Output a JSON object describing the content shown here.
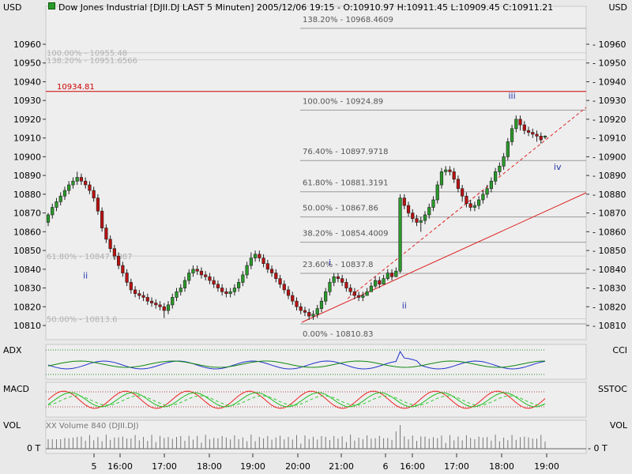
{
  "header": {
    "left_unit": "USD",
    "right_unit": "USD",
    "title": "Dow Jones Industrial [DJII.DJ LAST 5 Minuten] 2005/12/06 19:15 - O:10910.97 H:10911.45 L:10909.45 C:10911.21"
  },
  "panels": {
    "adx_label": "ADX",
    "cci_label": "CCI",
    "macd_label": "MACD",
    "sstoc_label": "SSTOC",
    "vol_label_left": "VOL",
    "vol_label_right": "VOL",
    "vol_zero_left": "0 T",
    "vol_zero_right": "- 0 T",
    "volume_legend": "XX Volume 840 (DJII.DJ)"
  },
  "colors": {
    "up_candle": "#2a9a2a",
    "down_candle": "#bb1111",
    "level_line": "#cc0000",
    "trendline": "#dd2222",
    "fib_line": "#9a9a9a",
    "wave_label": "#2233aa",
    "adx_blue": "#2233cc",
    "adx_green": "#118811",
    "macd_red": "#ee2222",
    "macd_green": "#22bb22"
  },
  "chart_data": {
    "type": "candlestick",
    "y_axis_ticks": [
      10960,
      10950,
      10940,
      10930,
      10920,
      10910,
      10900,
      10890,
      10880,
      10870,
      10860,
      10850,
      10840,
      10830,
      10820,
      10810
    ],
    "x_axis_labels": [
      "5",
      "16:00",
      "17:00",
      "18:00",
      "19:00",
      "20:00",
      "21:00",
      "6",
      "16:00",
      "17:00",
      "18:00",
      "19:00"
    ],
    "ylim": [
      10806,
      10968
    ],
    "horizontal_level": {
      "value": 10934.81,
      "label": "10934.81"
    },
    "fib_left": [
      {
        "text": "100.00% - 10955.48",
        "value": 10955.48
      },
      {
        "text": "138.20% - 10951.6566",
        "value": 10951.6566
      },
      {
        "text": "61.80% - 10847.0087",
        "value": 10847.0087
      },
      {
        "text": "50.00% - 10813.6",
        "value": 10813.6
      }
    ],
    "fib_right": [
      {
        "text": "138.20% - 10968.4609",
        "value": 10968.4609
      },
      {
        "text": "100.00% - 10924.89",
        "value": 10924.89
      },
      {
        "text": "76.40% - 10897.9718",
        "value": 10897.9718
      },
      {
        "text": "61.80% - 10881.3191",
        "value": 10881.3191
      },
      {
        "text": "50.00% - 10867.86",
        "value": 10867.86
      },
      {
        "text": "38.20% - 10854.4009",
        "value": 10854.4009
      },
      {
        "text": "23.60% - 10837.8",
        "value": 10837.8
      },
      {
        "text": "0.00% - 10810.83",
        "value": 10810.83
      }
    ],
    "wave_labels": [
      {
        "text": "ii",
        "bar": 9,
        "value": 10835
      },
      {
        "text": "i",
        "bar": 68,
        "value": 10842
      },
      {
        "text": "ii",
        "bar": 86,
        "value": 10819
      },
      {
        "text": "iii",
        "bar": 112,
        "value": 10931
      },
      {
        "text": "iv",
        "bar": 123,
        "value": 10893
      }
    ],
    "close": [
      10869,
      10873,
      10876,
      10879,
      10882,
      10885,
      10887,
      10889,
      10887,
      10885,
      10882,
      10878,
      10871,
      10862,
      10856,
      10851,
      10847,
      10842,
      10838,
      10833,
      10829,
      10827,
      10826,
      10825,
      10823,
      10822,
      10821,
      10820,
      10818,
      10821,
      10825,
      10828,
      10830,
      10834,
      10838,
      10840,
      10839,
      10837,
      10836,
      10834,
      10832,
      10830,
      10828,
      10827,
      10828,
      10830,
      10833,
      10837,
      10842,
      10846,
      10848,
      10846,
      10843,
      10840,
      10838,
      10835,
      10832,
      10829,
      10826,
      10823,
      10820,
      10818,
      10817,
      10815,
      10816,
      10819,
      10823,
      10828,
      10833,
      10836,
      10835,
      10833,
      10830,
      10828,
      10826,
      10825,
      10826,
      10828,
      10831,
      10834,
      10832,
      10835,
      10838,
      10836,
      10839,
      10878,
      10874,
      10870,
      10867,
      10865,
      10866,
      10869,
      10873,
      10877,
      10885,
      10892,
      10893,
      10892,
      10888,
      10883,
      10879,
      10875,
      10873,
      10874,
      10877,
      10880,
      10883,
      10887,
      10892,
      10895,
      10900,
      10908,
      10915,
      10920,
      10917,
      10914,
      10913,
      10912,
      10911,
      10909,
      10911
    ],
    "open": [
      10865,
      10869,
      10873,
      10876,
      10879,
      10882,
      10885,
      10887,
      10889,
      10887,
      10885,
      10882,
      10878,
      10871,
      10862,
      10856,
      10851,
      10847,
      10842,
      10838,
      10833,
      10829,
      10827,
      10826,
      10825,
      10823,
      10822,
      10821,
      10820,
      10818,
      10821,
      10825,
      10828,
      10830,
      10834,
      10838,
      10840,
      10839,
      10837,
      10836,
      10834,
      10832,
      10830,
      10828,
      10827,
      10828,
      10830,
      10833,
      10837,
      10842,
      10846,
      10848,
      10846,
      10843,
      10840,
      10838,
      10835,
      10832,
      10829,
      10826,
      10823,
      10820,
      10818,
      10817,
      10815,
      10816,
      10819,
      10823,
      10828,
      10833,
      10836,
      10835,
      10833,
      10830,
      10828,
      10826,
      10825,
      10826,
      10828,
      10831,
      10834,
      10832,
      10835,
      10838,
      10836,
      10839,
      10878,
      10874,
      10870,
      10867,
      10865,
      10866,
      10869,
      10873,
      10877,
      10885,
      10892,
      10893,
      10892,
      10888,
      10883,
      10879,
      10875,
      10873,
      10874,
      10877,
      10880,
      10883,
      10887,
      10892,
      10895,
      10900,
      10908,
      10915,
      10920,
      10917,
      10914,
      10913,
      10912,
      10911,
      10910.97
    ],
    "high": [
      10870,
      10875,
      10878,
      10881,
      10884,
      10887,
      10889,
      10892,
      10891,
      10889,
      10887,
      10884,
      10880,
      10873,
      10864,
      10858,
      10853,
      10849,
      10844,
      10840,
      10835,
      10831,
      10829,
      10828,
      10827,
      10825,
      10824,
      10823,
      10822,
      10823,
      10827,
      10830,
      10832,
      10836,
      10840,
      10842,
      10842,
      10841,
      10839,
      10838,
      10836,
      10834,
      10832,
      10830,
      10830,
      10832,
      10835,
      10839,
      10844,
      10849,
      10850,
      10850,
      10848,
      10845,
      10842,
      10840,
      10837,
      10834,
      10831,
      10828,
      10825,
      10822,
      10820,
      10819,
      10818,
      10821,
      10825,
      10830,
      10835,
      10838,
      10838,
      10837,
      10835,
      10832,
      10830,
      10828,
      10828,
      10830,
      10833,
      10836,
      10836,
      10837,
      10840,
      10840,
      10841,
      10880,
      10880,
      10876,
      10872,
      10869,
      10868,
      10871,
      10875,
      10879,
      10887,
      10894,
      10895,
      10895,
      10894,
      10890,
      10885,
      10881,
      10877,
      10876,
      10879,
      10882,
      10885,
      10889,
      10894,
      10897,
      10902,
      10910,
      10917,
      10922,
      10922,
      10919,
      10916,
      10915,
      10914,
      10913,
      10911.45
    ],
    "low": [
      10863,
      10867,
      10871,
      10874,
      10877,
      10880,
      10883,
      10885,
      10885,
      10883,
      10880,
      10876,
      10869,
      10860,
      10854,
      10849,
      10845,
      10840,
      10836,
      10831,
      10827,
      10825,
      10824,
      10823,
      10821,
      10820,
      10819,
      10818,
      10814,
      10816,
      10819,
      10823,
      10826,
      10828,
      10832,
      10836,
      10837,
      10835,
      10834,
      10832,
      10830,
      10828,
      10826,
      10825,
      10825,
      10826,
      10828,
      10831,
      10835,
      10840,
      10844,
      10844,
      10841,
      10838,
      10836,
      10833,
      10830,
      10827,
      10824,
      10821,
      10818,
      10816,
      10815,
      10813,
      10813,
      10814,
      10817,
      10821,
      10826,
      10831,
      10833,
      10831,
      10828,
      10826,
      10824,
      10823,
      10823,
      10826,
      10829,
      10830,
      10830,
      10833,
      10834,
      10834,
      10837,
      10838,
      10872,
      10868,
      10865,
      10863,
      10860,
      10864,
      10867,
      10871,
      10875,
      10883,
      10890,
      10890,
      10886,
      10881,
      10876,
      10873,
      10871,
      10871,
      10872,
      10875,
      10878,
      10881,
      10885,
      10890,
      10893,
      10898,
      10906,
      10913,
      10914,
      10912,
      10911,
      10910,
      10908,
      10907,
      10909.45
    ]
  }
}
